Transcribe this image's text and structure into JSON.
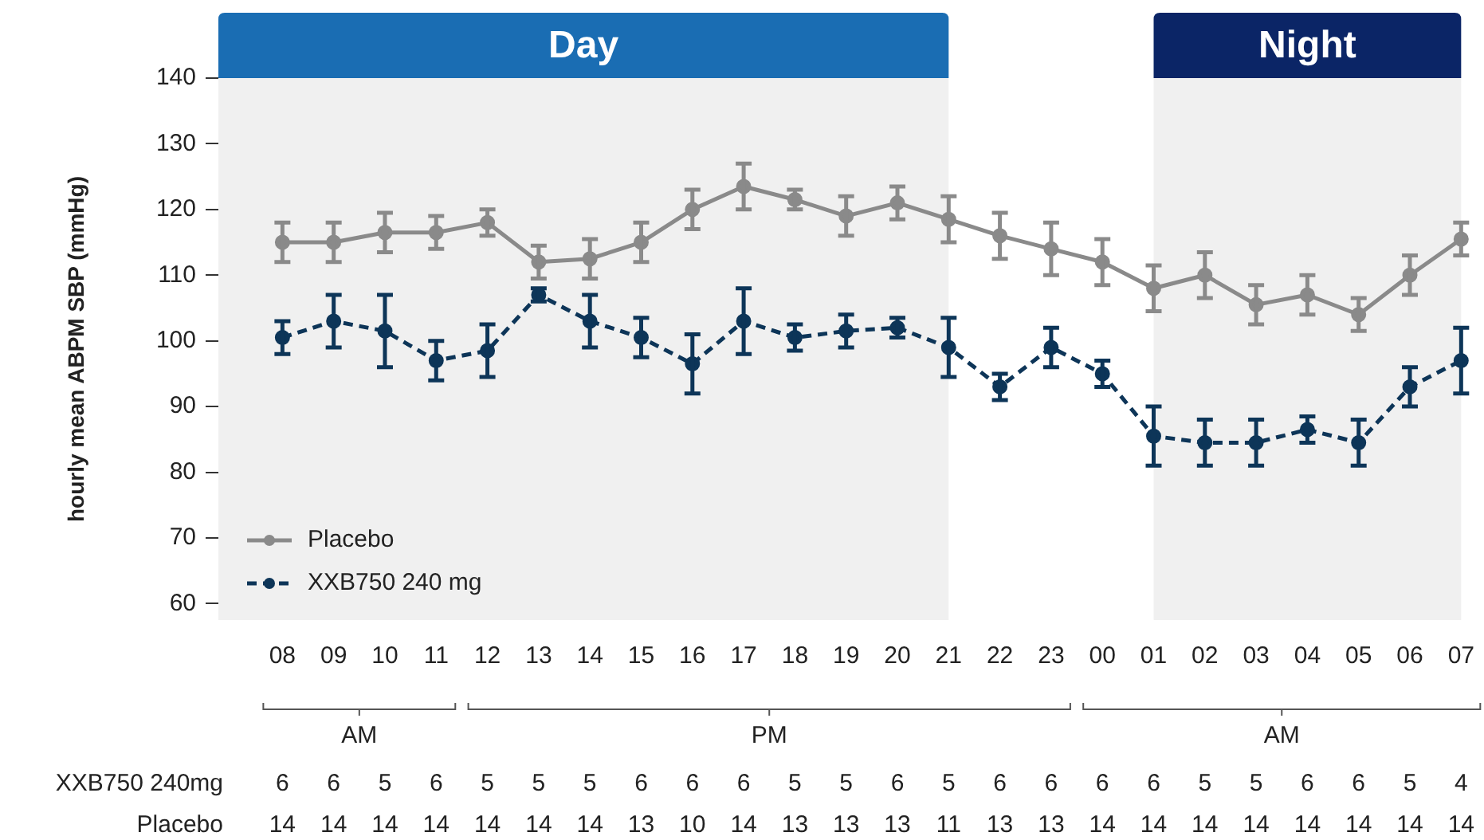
{
  "chart_data": {
    "type": "line",
    "ylabel": "hourly mean ABPM SBP (mmHg)",
    "categories": [
      "08",
      "09",
      "10",
      "11",
      "12",
      "13",
      "14",
      "15",
      "16",
      "17",
      "18",
      "19",
      "20",
      "21",
      "22",
      "23",
      "00",
      "01",
      "02",
      "03",
      "04",
      "05",
      "06",
      "07"
    ],
    "series": [
      {
        "name": "Placebo",
        "color": "#8a8a8a",
        "line_style": "solid",
        "values": [
          115,
          115,
          116.5,
          116.5,
          118,
          112,
          112.5,
          115,
          120,
          123.5,
          121.5,
          119,
          121,
          118.5,
          116,
          114,
          112,
          108,
          110,
          105.5,
          107,
          104,
          110,
          115.5
        ],
        "errors": [
          3,
          3,
          3,
          2.5,
          2,
          2.5,
          3,
          3,
          3,
          3.5,
          1.5,
          3,
          2.5,
          3.5,
          3.5,
          4,
          3.5,
          3.5,
          3.5,
          3,
          3,
          2.5,
          3,
          2.5
        ]
      },
      {
        "name": "XXB750 240 mg",
        "color": "#0d3558",
        "line_style": "dashed",
        "values": [
          100.5,
          103,
          101.5,
          97,
          98.5,
          107,
          103,
          100.5,
          96.5,
          103,
          100.5,
          101.5,
          102,
          99,
          93,
          99,
          95,
          85.5,
          84.5,
          84.5,
          86.5,
          84.5,
          93,
          97
        ],
        "errors": [
          2.5,
          4,
          5.5,
          3,
          4,
          1,
          4,
          3,
          4.5,
          5,
          2,
          2.5,
          1.5,
          4.5,
          2,
          3,
          2,
          4.5,
          3.5,
          3.5,
          2,
          3.5,
          3,
          5
        ]
      }
    ],
    "ylim": [
      57.5,
      140
    ],
    "yticks": [
      60,
      70,
      80,
      90,
      100,
      110,
      120,
      130,
      140
    ],
    "grid": false,
    "legend": "bottom left",
    "marker": "circle",
    "bands": [
      {
        "axis": "x",
        "from": "08",
        "to": "21",
        "label": "Day",
        "color": "#f0f0f0"
      },
      {
        "axis": "x",
        "from": "01",
        "to": "07",
        "label": "Night",
        "color": "#f0f0f0"
      }
    ],
    "annotations": [
      "AM",
      "PM",
      "AM",
      "XXB750 240mg",
      "6",
      "6",
      "5",
      "6",
      "5",
      "5",
      "5",
      "6",
      "6",
      "6",
      "5",
      "5",
      "6",
      "5",
      "6",
      "6",
      "6",
      "6",
      "5",
      "5",
      "6",
      "6",
      "5",
      "4",
      "Placebo",
      "14",
      "14",
      "14",
      "14",
      "14",
      "14",
      "14",
      "13",
      "10",
      "14",
      "13",
      "13",
      "13",
      "11",
      "13",
      "13",
      "14",
      "14",
      "14",
      "14",
      "14",
      "14",
      "14",
      "14"
    ]
  }
}
